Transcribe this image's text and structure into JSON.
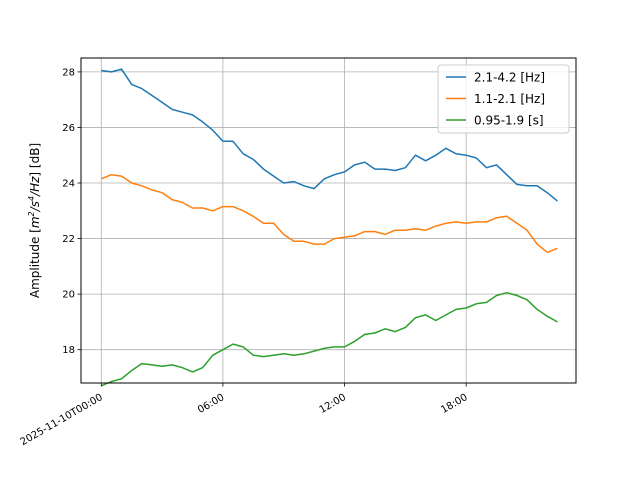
{
  "chart_data": {
    "type": "line",
    "title": "",
    "xlabel": "",
    "ylabel": "Amplitude [m²/s⁴/Hz] [dB]",
    "ylabel_parts": {
      "prefix": "Amplitude [",
      "m": "m",
      "exp1": "2",
      "slash_s": "/s",
      "exp2": "4",
      "suffix_hz": "/Hz",
      "end": "] [dB]"
    },
    "x_axis_type": "datetime",
    "xlim": [
      "2025-11-09T23:00",
      "2025-11-10T23:25"
    ],
    "ylim": [
      16.8,
      28.5
    ],
    "x_ticks": [
      {
        "value": "2025-11-10T00:00",
        "label": "2025-11-10T00:00"
      },
      {
        "value": "2025-11-10T06:00",
        "label": "06:00"
      },
      {
        "value": "2025-11-10T12:00",
        "label": "12:00"
      },
      {
        "value": "2025-11-10T18:00",
        "label": "18:00"
      }
    ],
    "y_ticks": [
      18,
      20,
      22,
      24,
      26,
      28
    ],
    "y_tick_labels": [
      "18",
      "20",
      "22",
      "24",
      "26",
      "28"
    ],
    "grid": true,
    "legend_position": "top-right",
    "x": [
      "2025-11-10T00:00",
      "2025-11-10T00:30",
      "2025-11-10T01:00",
      "2025-11-10T01:30",
      "2025-11-10T02:00",
      "2025-11-10T02:30",
      "2025-11-10T03:00",
      "2025-11-10T03:30",
      "2025-11-10T04:00",
      "2025-11-10T04:30",
      "2025-11-10T05:00",
      "2025-11-10T05:30",
      "2025-11-10T06:00",
      "2025-11-10T06:30",
      "2025-11-10T07:00",
      "2025-11-10T07:30",
      "2025-11-10T08:00",
      "2025-11-10T08:30",
      "2025-11-10T09:00",
      "2025-11-10T09:30",
      "2025-11-10T10:00",
      "2025-11-10T10:30",
      "2025-11-10T11:00",
      "2025-11-10T11:30",
      "2025-11-10T12:00",
      "2025-11-10T12:30",
      "2025-11-10T13:00",
      "2025-11-10T13:30",
      "2025-11-10T14:00",
      "2025-11-10T14:30",
      "2025-11-10T15:00",
      "2025-11-10T15:30",
      "2025-11-10T16:00",
      "2025-11-10T16:30",
      "2025-11-10T17:00",
      "2025-11-10T17:30",
      "2025-11-10T18:00",
      "2025-11-10T18:30",
      "2025-11-10T19:00",
      "2025-11-10T19:30",
      "2025-11-10T20:00",
      "2025-11-10T20:30",
      "2025-11-10T21:00",
      "2025-11-10T21:30",
      "2025-11-10T22:00",
      "2025-11-10T22:30"
    ],
    "series": [
      {
        "name": "2.1-4.2 [Hz]",
        "color": "#1f77b4",
        "values": [
          28.05,
          28.0,
          28.1,
          27.55,
          27.4,
          27.15,
          26.9,
          26.65,
          26.55,
          26.45,
          26.2,
          25.9,
          25.5,
          25.5,
          25.05,
          24.85,
          24.5,
          24.25,
          24.0,
          24.05,
          23.9,
          23.8,
          24.15,
          24.3,
          24.4,
          24.65,
          24.75,
          24.5,
          24.5,
          24.45,
          24.55,
          25.0,
          24.8,
          25.0,
          25.25,
          25.05,
          25.0,
          24.9,
          24.55,
          24.65,
          24.3,
          23.95,
          23.9,
          23.9,
          23.65,
          23.35
        ]
      },
      {
        "name": "1.1-2.1 [Hz]",
        "color": "#ff7f0e",
        "values": [
          24.15,
          24.3,
          24.25,
          24.0,
          23.9,
          23.75,
          23.65,
          23.4,
          23.3,
          23.1,
          23.1,
          23.0,
          23.15,
          23.15,
          23.0,
          22.8,
          22.55,
          22.55,
          22.15,
          21.9,
          21.9,
          21.8,
          21.8,
          22.0,
          22.05,
          22.1,
          22.25,
          22.25,
          22.15,
          22.3,
          22.3,
          22.35,
          22.3,
          22.45,
          22.55,
          22.6,
          22.55,
          22.6,
          22.6,
          22.75,
          22.8,
          22.55,
          22.3,
          21.8,
          21.5,
          21.65
        ]
      },
      {
        "name": "0.95-1.9 [s]",
        "color": "#2ca02c",
        "values": [
          16.7,
          16.85,
          16.95,
          17.25,
          17.5,
          17.45,
          17.4,
          17.45,
          17.35,
          17.2,
          17.35,
          17.8,
          18.0,
          18.2,
          18.1,
          17.8,
          17.75,
          17.8,
          17.85,
          17.8,
          17.85,
          17.95,
          18.05,
          18.1,
          18.1,
          18.3,
          18.55,
          18.6,
          18.75,
          18.65,
          18.8,
          19.15,
          19.25,
          19.05,
          19.25,
          19.45,
          19.5,
          19.65,
          19.7,
          19.95,
          20.05,
          19.95,
          19.8,
          19.45,
          19.2,
          19.0
        ]
      }
    ]
  }
}
